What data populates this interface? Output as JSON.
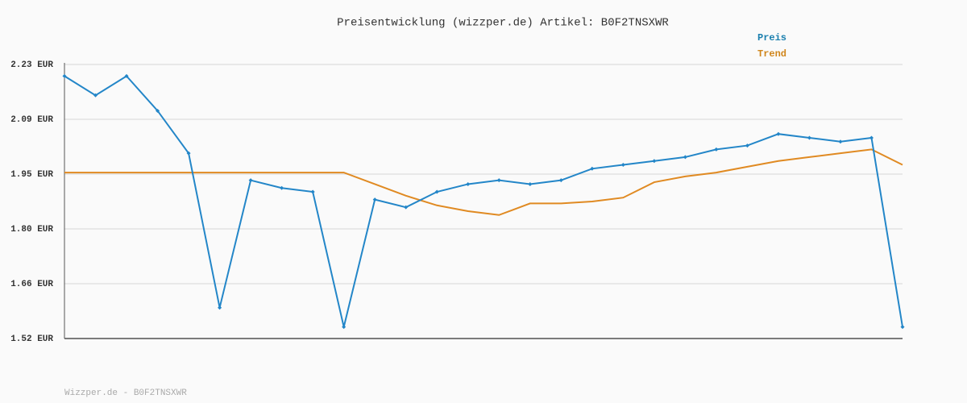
{
  "chart_data": {
    "type": "line",
    "title": "Preisentwicklung (wizzper.de) Artikel: B0F2TNSXWR",
    "footer": "Wizzper.de - B0F2TNSXWR",
    "categories": [
      null,
      null,
      null,
      null,
      null,
      null,
      null,
      null,
      null,
      null,
      null,
      null,
      null,
      null,
      null,
      null,
      null,
      null,
      null,
      null,
      null,
      null,
      null,
      null,
      null,
      null,
      null,
      null
    ],
    "series": [
      {
        "name": "Preis",
        "color": "#2386c8",
        "label_color": "#1a7fae",
        "values": [
          2.2,
          2.15,
          2.2,
          2.11,
          2.0,
          1.6,
          1.93,
          1.91,
          1.9,
          1.55,
          1.88,
          1.86,
          1.9,
          1.92,
          1.93,
          1.92,
          1.93,
          1.96,
          1.97,
          1.98,
          1.99,
          2.01,
          2.02,
          2.05,
          2.04,
          2.03,
          2.04,
          1.55
        ]
      },
      {
        "name": "Trend",
        "color": "#e08a22",
        "label_color": "#d0861c",
        "values": [
          1.95,
          1.95,
          1.95,
          1.95,
          1.95,
          1.95,
          1.95,
          1.95,
          1.95,
          1.95,
          1.92,
          1.89,
          1.865,
          1.85,
          1.84,
          1.87,
          1.87,
          1.875,
          1.885,
          1.925,
          1.94,
          1.95,
          1.965,
          1.98,
          1.99,
          2.0,
          2.01,
          1.97
        ]
      }
    ],
    "ylim": [
      1.52,
      2.23
    ],
    "yticks": [
      {
        "value": 1.52,
        "label": "1.52 EUR"
      },
      {
        "value": 1.662,
        "label": "1.66 EUR"
      },
      {
        "value": 1.804,
        "label": "1.80 EUR"
      },
      {
        "value": 1.946,
        "label": "1.95 EUR"
      },
      {
        "value": 2.088,
        "label": "2.09 EUR"
      },
      {
        "value": 2.23,
        "label": "2.23 EUR"
      }
    ],
    "grid": true
  }
}
